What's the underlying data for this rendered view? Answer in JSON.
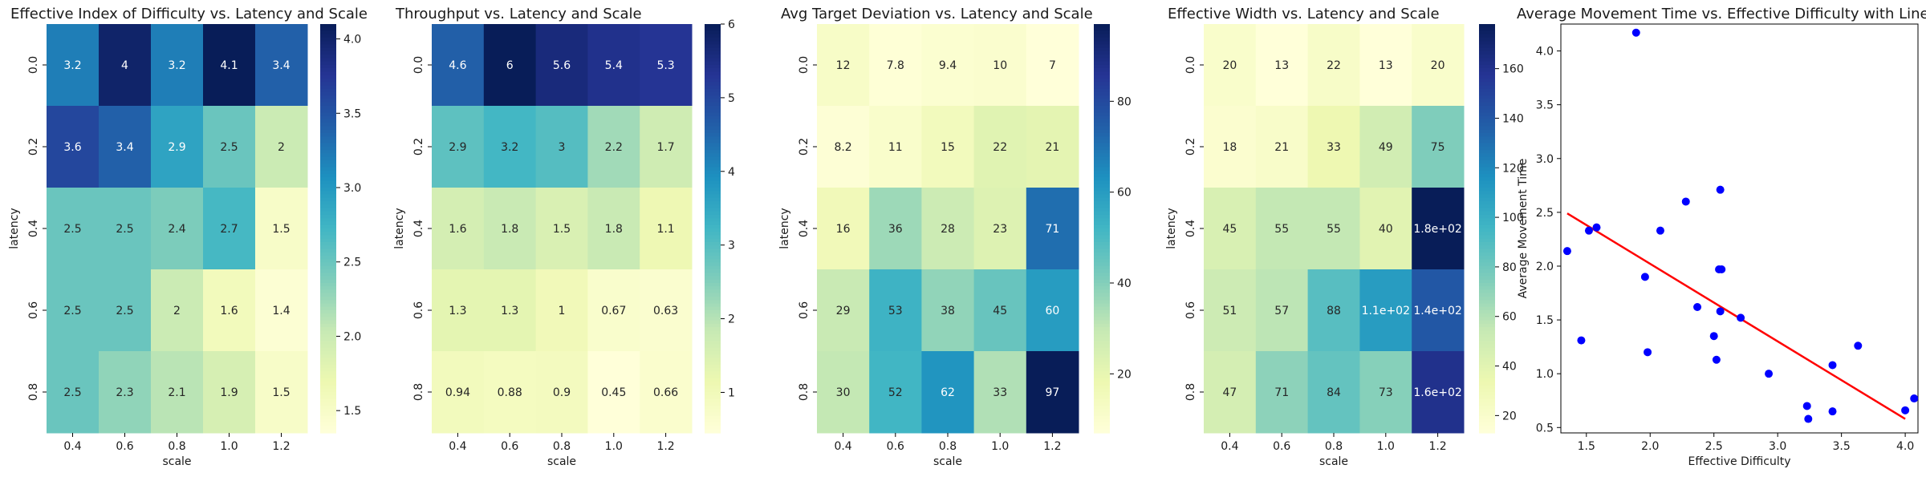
{
  "chart_data": [
    {
      "type": "heatmap",
      "title": "Effective Index of Difficulty vs. Latency and Scale",
      "xlabel": "scale",
      "ylabel": "latency",
      "x": [
        "0.4",
        "0.6",
        "0.8",
        "1.0",
        "1.2"
      ],
      "y": [
        "0.0",
        "0.2",
        "0.4",
        "0.6",
        "0.8"
      ],
      "values": [
        [
          3.2,
          4,
          3.2,
          4.1,
          3.4
        ],
        [
          3.6,
          3.4,
          2.9,
          2.5,
          2
        ],
        [
          2.5,
          2.5,
          2.4,
          2.7,
          1.5
        ],
        [
          2.5,
          2.5,
          2,
          1.6,
          1.4
        ],
        [
          2.5,
          2.3,
          2.1,
          1.9,
          1.5
        ]
      ],
      "labels": [
        [
          "3.2",
          "4",
          "3.2",
          "4.1",
          "3.4"
        ],
        [
          "3.6",
          "3.4",
          "2.9",
          "2.5",
          "2"
        ],
        [
          "2.5",
          "2.5",
          "2.4",
          "2.7",
          "1.5"
        ],
        [
          "2.5",
          "2.5",
          "2",
          "1.6",
          "1.4"
        ],
        [
          "2.5",
          "2.3",
          "2.1",
          "1.9",
          "1.5"
        ]
      ],
      "colorbar": {
        "min": 1.35,
        "max": 4.1,
        "ticks": [
          1.5,
          2.0,
          2.5,
          3.0,
          3.5,
          4.0
        ],
        "tick_labels": [
          "1.5",
          "2.0",
          "2.5",
          "3.0",
          "3.5",
          "4.0"
        ]
      },
      "colormap": "YlGnBu"
    },
    {
      "type": "heatmap",
      "title": "Throughput vs. Latency and Scale",
      "xlabel": "scale",
      "ylabel": "latency",
      "x": [
        "0.4",
        "0.6",
        "0.8",
        "1.0",
        "1.2"
      ],
      "y": [
        "0.0",
        "0.2",
        "0.4",
        "0.6",
        "0.8"
      ],
      "values": [
        [
          4.6,
          6,
          5.6,
          5.4,
          5.3
        ],
        [
          2.9,
          3.2,
          3,
          2.2,
          1.7
        ],
        [
          1.6,
          1.8,
          1.5,
          1.8,
          1.1
        ],
        [
          1.3,
          1.3,
          1,
          0.67,
          0.63
        ],
        [
          0.94,
          0.88,
          0.9,
          0.45,
          0.66
        ]
      ],
      "labels": [
        [
          "4.6",
          "6",
          "5.6",
          "5.4",
          "5.3"
        ],
        [
          "2.9",
          "3.2",
          "3",
          "2.2",
          "1.7"
        ],
        [
          "1.6",
          "1.8",
          "1.5",
          "1.8",
          "1.1"
        ],
        [
          "1.3",
          "1.3",
          "1",
          "0.67",
          "0.63"
        ],
        [
          "0.94",
          "0.88",
          "0.9",
          "0.45",
          "0.66"
        ]
      ],
      "colorbar": {
        "min": 0.45,
        "max": 6.0,
        "ticks": [
          1,
          2,
          3,
          4,
          5,
          6
        ],
        "tick_labels": [
          "1",
          "2",
          "3",
          "4",
          "5",
          "6"
        ]
      },
      "colormap": "YlGnBu"
    },
    {
      "type": "heatmap",
      "title": "Avg Target Deviation vs. Latency and Scale",
      "xlabel": "scale",
      "ylabel": "latency",
      "x": [
        "0.4",
        "0.6",
        "0.8",
        "1.0",
        "1.2"
      ],
      "y": [
        "0.0",
        "0.2",
        "0.4",
        "0.6",
        "0.8"
      ],
      "values": [
        [
          12,
          7.8,
          9.4,
          10,
          7
        ],
        [
          8.2,
          11,
          15,
          22,
          21
        ],
        [
          16,
          36,
          28,
          23,
          71
        ],
        [
          29,
          53,
          38,
          45,
          60
        ],
        [
          30,
          52,
          62,
          33,
          97
        ]
      ],
      "labels": [
        [
          "12",
          "7.8",
          "9.4",
          "10",
          "7"
        ],
        [
          "8.2",
          "11",
          "15",
          "22",
          "21"
        ],
        [
          "16",
          "36",
          "28",
          "23",
          "71"
        ],
        [
          "29",
          "53",
          "38",
          "45",
          "60"
        ],
        [
          "30",
          "52",
          "62",
          "33",
          "97"
        ]
      ],
      "colorbar": {
        "min": 7,
        "max": 97,
        "ticks": [
          20,
          40,
          60,
          80
        ],
        "tick_labels": [
          "20",
          "40",
          "60",
          "80"
        ]
      },
      "colormap": "YlGnBu"
    },
    {
      "type": "heatmap",
      "title": "Effective Width vs. Latency and Scale",
      "xlabel": "scale",
      "ylabel": "latency",
      "x": [
        "0.4",
        "0.6",
        "0.8",
        "1.0",
        "1.2"
      ],
      "y": [
        "0.0",
        "0.2",
        "0.4",
        "0.6",
        "0.8"
      ],
      "values": [
        [
          20,
          13,
          22,
          13,
          20
        ],
        [
          18,
          21,
          33,
          49,
          75
        ],
        [
          45,
          55,
          55,
          40,
          180
        ],
        [
          51,
          57,
          88,
          110,
          140
        ],
        [
          47,
          71,
          84,
          73,
          160
        ]
      ],
      "labels": [
        [
          "20",
          "13",
          "22",
          "13",
          "20"
        ],
        [
          "18",
          "21",
          "33",
          "49",
          "75"
        ],
        [
          "45",
          "55",
          "55",
          "40",
          "1.8e+02"
        ],
        [
          "51",
          "57",
          "88",
          "1.1e+02",
          "1.4e+02"
        ],
        [
          "47",
          "71",
          "84",
          "73",
          "1.6e+02"
        ]
      ],
      "colorbar": {
        "min": 13,
        "max": 178,
        "ticks": [
          20,
          40,
          60,
          80,
          100,
          120,
          140,
          160
        ],
        "tick_labels": [
          "20",
          "40",
          "60",
          "80",
          "100",
          "120",
          "140",
          "160"
        ]
      },
      "colormap": "YlGnBu"
    },
    {
      "type": "scatter",
      "title": "Average Movement Time vs. Effective Difficulty with Linear Re",
      "xlabel": "Effective Difficulty",
      "ylabel": "Average Movement Time",
      "xlim": [
        1.3,
        4.1
      ],
      "ylim": [
        0.45,
        4.25
      ],
      "x_ticks": [
        1.5,
        2.0,
        2.5,
        3.0,
        3.5,
        4.0
      ],
      "y_ticks": [
        0.5,
        1.0,
        1.5,
        2.0,
        2.5,
        3.0,
        3.5,
        4.0
      ],
      "x_tick_labels": [
        "1.5",
        "2.0",
        "2.5",
        "3.0",
        "3.5",
        "4.0"
      ],
      "y_tick_labels": [
        "0.5",
        "1.0",
        "1.5",
        "2.0",
        "2.5",
        "3.0",
        "3.5",
        "4.0"
      ],
      "points": [
        {
          "x": 1.35,
          "y": 2.14
        },
        {
          "x": 1.46,
          "y": 1.31
        },
        {
          "x": 1.52,
          "y": 2.33
        },
        {
          "x": 1.58,
          "y": 2.36
        },
        {
          "x": 1.89,
          "y": 4.17
        },
        {
          "x": 1.96,
          "y": 1.9
        },
        {
          "x": 1.98,
          "y": 1.2
        },
        {
          "x": 2.08,
          "y": 2.33
        },
        {
          "x": 2.28,
          "y": 2.6
        },
        {
          "x": 2.37,
          "y": 1.62
        },
        {
          "x": 2.5,
          "y": 1.35
        },
        {
          "x": 2.52,
          "y": 1.13
        },
        {
          "x": 2.54,
          "y": 1.97
        },
        {
          "x": 2.55,
          "y": 1.58
        },
        {
          "x": 2.55,
          "y": 2.71
        },
        {
          "x": 2.56,
          "y": 1.97
        },
        {
          "x": 2.71,
          "y": 1.52
        },
        {
          "x": 2.93,
          "y": 1.0
        },
        {
          "x": 3.23,
          "y": 0.7
        },
        {
          "x": 3.24,
          "y": 0.58
        },
        {
          "x": 3.43,
          "y": 1.08
        },
        {
          "x": 3.43,
          "y": 0.65
        },
        {
          "x": 3.63,
          "y": 1.26
        },
        {
          "x": 4.0,
          "y": 0.66
        },
        {
          "x": 4.07,
          "y": 0.77
        }
      ],
      "regression": {
        "x1": 1.35,
        "y1": 2.49,
        "x2": 4.0,
        "y2": 0.58
      },
      "point_color": "#0000ff",
      "line_color": "#ff0000"
    }
  ]
}
